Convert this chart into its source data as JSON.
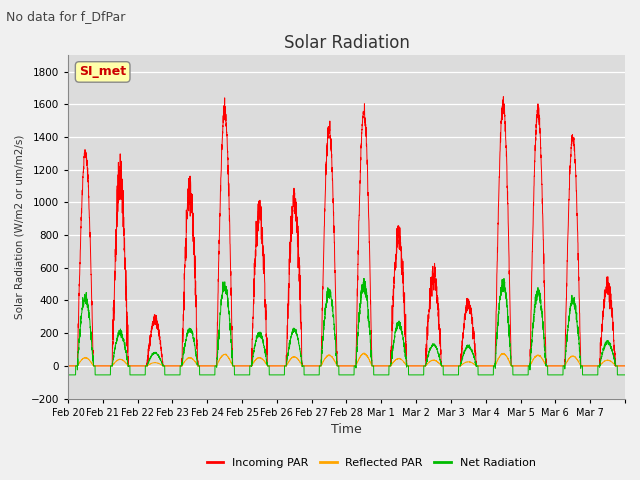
{
  "title": "Solar Radiation",
  "suptitle": "No data for f_DfPar",
  "ylabel": "Solar Radiation (W/m2 or um/m2/s)",
  "xlabel": "Time",
  "ylim": [
    -200,
    1900
  ],
  "yticks": [
    -200,
    0,
    200,
    400,
    600,
    800,
    1000,
    1200,
    1400,
    1600,
    1800
  ],
  "legend_label": "SI_met",
  "line_colors": {
    "incoming": "#ff0000",
    "reflected": "#ffa500",
    "net": "#00bb00"
  },
  "plot_bg": "#dcdcdc",
  "fig_bg": "#f0f0f0",
  "date_labels": [
    "Feb 20",
    "Feb 21",
    "Feb 22",
    "Feb 23",
    "Feb 24",
    "Feb 25",
    "Feb 26",
    "Feb 27",
    "Feb 28",
    "Mar 1",
    "Mar 2",
    "Mar 3",
    "Mar 4",
    "Mar 5",
    "Mar 6",
    "Mar 7"
  ]
}
